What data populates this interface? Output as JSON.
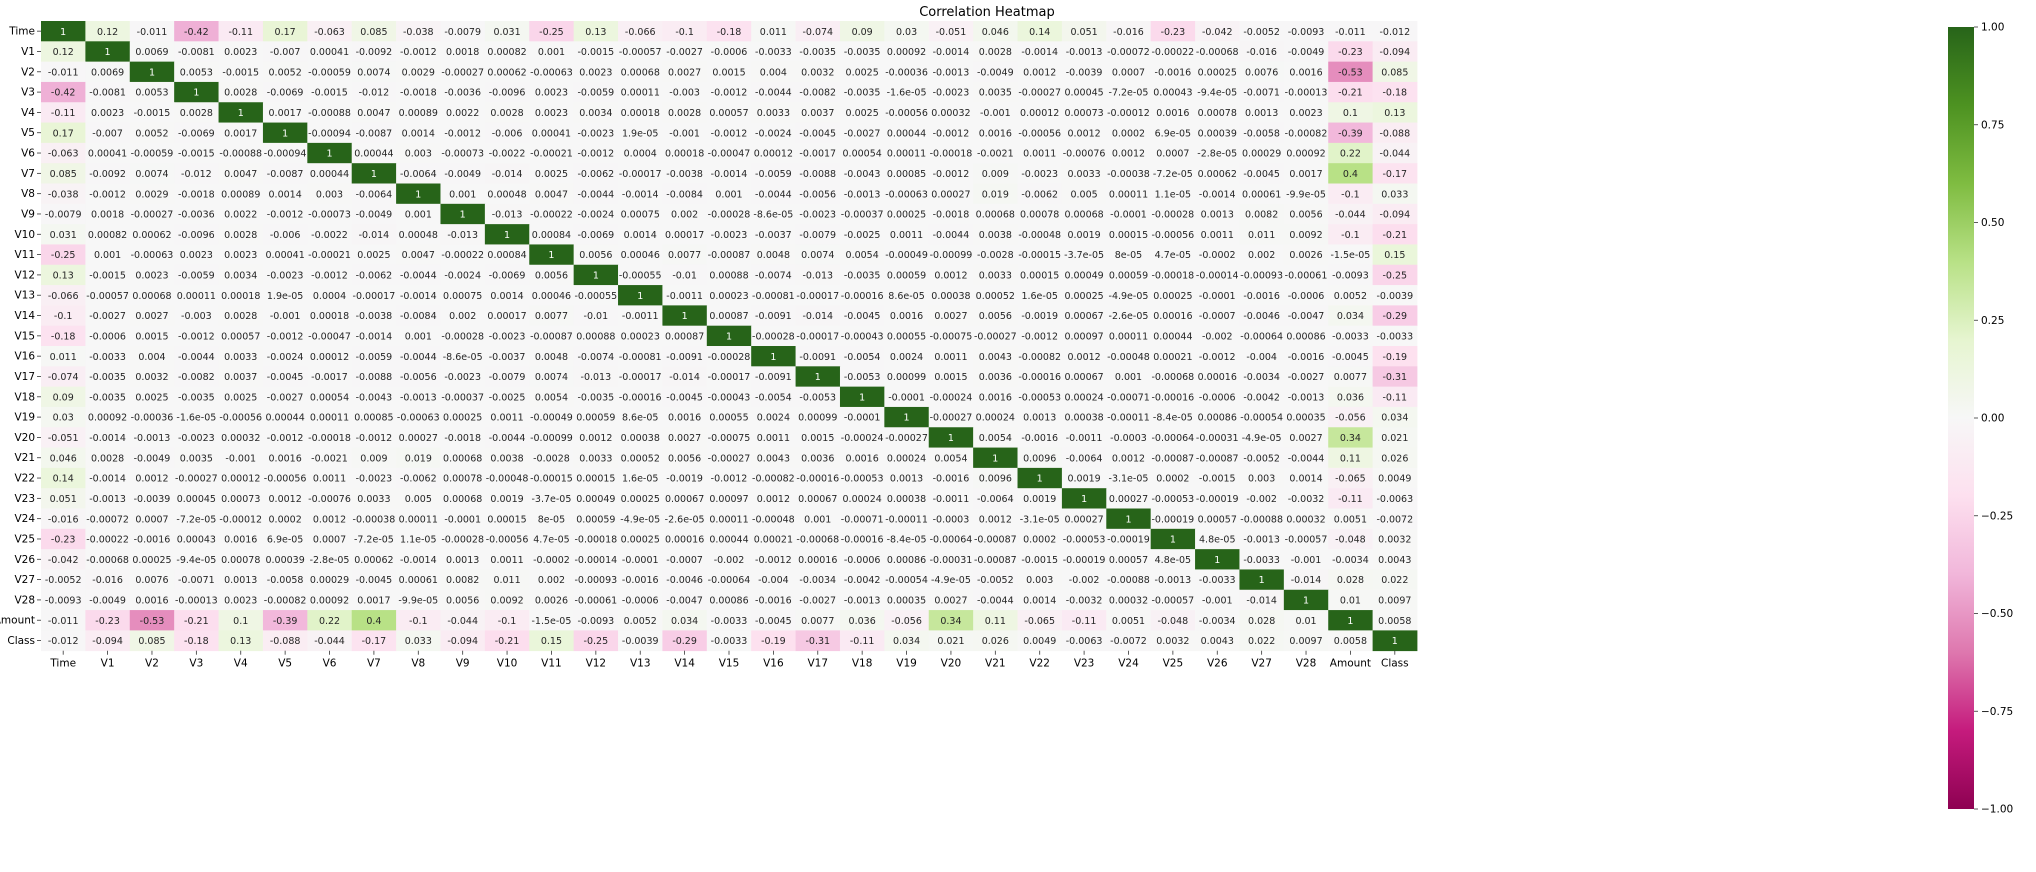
{
  "chart_data": {
    "type": "heatmap",
    "title": "Correlation Heatmap",
    "colormap": "PiYG",
    "vmin": -1,
    "vmax": 1,
    "labels": [
      "Time",
      "V1",
      "V2",
      "V3",
      "V4",
      "V5",
      "V6",
      "V7",
      "V8",
      "V9",
      "V10",
      "V11",
      "V12",
      "V13",
      "V14",
      "V15",
      "V16",
      "V17",
      "V18",
      "V19",
      "V20",
      "V21",
      "V22",
      "V23",
      "V24",
      "V25",
      "V26",
      "V27",
      "V28",
      "Amount",
      "Class"
    ],
    "colorbar_ticks": [
      "1.00",
      "0.75",
      "0.50",
      "0.25",
      "0.00",
      "−0.25",
      "−0.50",
      "−0.75",
      "−1.00"
    ],
    "colorbar_tick_values": [
      1.0,
      0.75,
      0.5,
      0.25,
      0.0,
      -0.25,
      -0.5,
      -0.75,
      -1.0
    ],
    "matrix": [
      [
        "1",
        "0.12",
        "-0.011",
        "-0.42",
        "-0.11",
        "0.17",
        "-0.063",
        "0.085",
        "-0.038",
        "-0.0079",
        "0.031",
        "-0.25",
        "0.13",
        "-0.066",
        "-0.1",
        "-0.18",
        "0.011",
        "-0.074",
        "0.09",
        "0.03",
        "-0.051",
        "0.046",
        "0.14",
        "0.051",
        "-0.016",
        "-0.23",
        "-0.042",
        "-0.0052",
        "-0.0093",
        "-0.011",
        "-0.012"
      ],
      [
        "0.12",
        "1",
        "0.0069",
        "-0.0081",
        "0.0023",
        "-0.007",
        "0.00041",
        "-0.0092",
        "-0.0012",
        "0.0018",
        "0.00082",
        "0.001",
        "-0.0015",
        "-0.00057",
        "-0.0027",
        "-0.0006",
        "-0.0033",
        "-0.0035",
        "-0.0035",
        "0.00092",
        "-0.0014",
        "0.0028",
        "-0.0014",
        "-0.0013",
        "-0.00072",
        "-0.00022",
        "-0.00068",
        "-0.016",
        "-0.0049",
        "-0.23",
        "-0.094"
      ],
      [
        "-0.011",
        "0.0069",
        "1",
        "0.0053",
        "-0.0015",
        "0.0052",
        "-0.00059",
        "0.0074",
        "0.0029",
        "-0.00027",
        "0.00062",
        "-0.00063",
        "0.0023",
        "0.00068",
        "0.0027",
        "0.0015",
        "0.004",
        "0.0032",
        "0.0025",
        "-0.00036",
        "-0.0013",
        "-0.0049",
        "0.0012",
        "-0.0039",
        "0.0007",
        "-0.0016",
        "0.00025",
        "0.0076",
        "0.0016",
        "-0.53",
        "0.085"
      ],
      [
        "-0.42",
        "-0.0081",
        "0.0053",
        "1",
        "0.0028",
        "-0.0069",
        "-0.0015",
        "-0.012",
        "-0.0018",
        "-0.0036",
        "-0.0096",
        "0.0023",
        "-0.0059",
        "0.00011",
        "-0.003",
        "-0.0012",
        "-0.0044",
        "-0.0082",
        "-0.0035",
        "-1.6e-05",
        "-0.0023",
        "0.0035",
        "-0.00027",
        "0.00045",
        "-7.2e-05",
        "0.00043",
        "-9.4e-05",
        "-0.0071",
        "-0.00013",
        "-0.21",
        "-0.18"
      ],
      [
        "-0.11",
        "0.0023",
        "-0.0015",
        "0.0028",
        "1",
        "0.0017",
        "-0.00088",
        "0.0047",
        "0.00089",
        "0.0022",
        "0.0028",
        "0.0023",
        "0.0034",
        "0.00018",
        "0.0028",
        "0.00057",
        "0.0033",
        "0.0037",
        "0.0025",
        "-0.00056",
        "0.00032",
        "-0.001",
        "0.00012",
        "0.00073",
        "-0.00012",
        "0.0016",
        "0.00078",
        "0.0013",
        "0.0023",
        "0.1",
        "0.13"
      ],
      [
        "0.17",
        "-0.007",
        "0.0052",
        "-0.0069",
        "0.0017",
        "1",
        "-0.00094",
        "-0.0087",
        "0.0014",
        "-0.0012",
        "-0.006",
        "0.00041",
        "-0.0023",
        "1.9e-05",
        "-0.001",
        "-0.0012",
        "-0.0024",
        "-0.0045",
        "-0.0027",
        "0.00044",
        "-0.0012",
        "0.0016",
        "-0.00056",
        "0.0012",
        "0.0002",
        "6.9e-05",
        "0.00039",
        "-0.0058",
        "-0.00082",
        "-0.39",
        "-0.088"
      ],
      [
        "-0.063",
        "0.00041",
        "-0.00059",
        "-0.0015",
        "-0.00088",
        "-0.00094",
        "1",
        "0.00044",
        "0.003",
        "-0.00073",
        "-0.0022",
        "-0.00021",
        "-0.0012",
        "0.0004",
        "0.00018",
        "-0.00047",
        "0.00012",
        "-0.0017",
        "0.00054",
        "0.00011",
        "-0.00018",
        "-0.0021",
        "0.0011",
        "-0.00076",
        "0.0012",
        "0.0007",
        "-2.8e-05",
        "0.00029",
        "0.00092",
        "0.22",
        "-0.044"
      ],
      [
        "0.085",
        "-0.0092",
        "0.0074",
        "-0.012",
        "0.0047",
        "-0.0087",
        "0.00044",
        "1",
        "-0.0064",
        "-0.0049",
        "-0.014",
        "0.0025",
        "-0.0062",
        "-0.00017",
        "-0.0038",
        "-0.0014",
        "-0.0059",
        "-0.0088",
        "-0.0043",
        "0.00085",
        "-0.0012",
        "0.009",
        "-0.0023",
        "0.0033",
        "-0.00038",
        "-7.2e-05",
        "0.00062",
        "-0.0045",
        "0.0017",
        "0.4",
        "-0.17"
      ],
      [
        "-0.038",
        "-0.0012",
        "0.0029",
        "-0.0018",
        "0.00089",
        "0.0014",
        "0.003",
        "-0.0064",
        "1",
        "0.001",
        "0.00048",
        "0.0047",
        "-0.0044",
        "-0.0014",
        "-0.0084",
        "0.001",
        "-0.0044",
        "-0.0056",
        "-0.0013",
        "-0.00063",
        "0.00027",
        "0.019",
        "-0.0062",
        "0.005",
        "0.00011",
        "1.1e-05",
        "-0.0014",
        "0.00061",
        "-9.9e-05",
        "-0.1",
        "0.033"
      ],
      [
        "-0.0079",
        "0.0018",
        "-0.00027",
        "-0.0036",
        "0.0022",
        "-0.0012",
        "-0.00073",
        "-0.0049",
        "0.001",
        "1",
        "-0.013",
        "-0.00022",
        "-0.0024",
        "0.00075",
        "0.002",
        "-0.00028",
        "-8.6e-05",
        "-0.0023",
        "-0.00037",
        "0.00025",
        "-0.0018",
        "0.00068",
        "0.00078",
        "0.00068",
        "-0.0001",
        "-0.00028",
        "0.0013",
        "0.0082",
        "0.0056",
        "-0.044",
        "-0.094"
      ],
      [
        "0.031",
        "0.00082",
        "0.00062",
        "-0.0096",
        "0.0028",
        "-0.006",
        "-0.0022",
        "-0.014",
        "0.00048",
        "-0.013",
        "1",
        "0.00084",
        "-0.0069",
        "0.0014",
        "0.00017",
        "-0.0023",
        "-0.0037",
        "-0.0079",
        "-0.0025",
        "0.0011",
        "-0.0044",
        "0.0038",
        "-0.00048",
        "0.0019",
        "0.00015",
        "-0.00056",
        "0.0011",
        "0.011",
        "0.0092",
        "-0.1",
        "-0.21"
      ],
      [
        "-0.25",
        "0.001",
        "-0.00063",
        "0.0023",
        "0.0023",
        "0.00041",
        "-0.00021",
        "0.0025",
        "0.0047",
        "-0.00022",
        "0.00084",
        "1",
        "0.0056",
        "0.00046",
        "0.0077",
        "-0.00087",
        "0.0048",
        "0.0074",
        "0.0054",
        "-0.00049",
        "-0.00099",
        "-0.0028",
        "-0.00015",
        "-3.7e-05",
        "8e-05",
        "4.7e-05",
        "-0.0002",
        "0.002",
        "0.0026",
        "-1.5e-05",
        "0.15"
      ],
      [
        "0.13",
        "-0.0015",
        "0.0023",
        "-0.0059",
        "0.0034",
        "-0.0023",
        "-0.0012",
        "-0.0062",
        "-0.0044",
        "-0.0024",
        "-0.0069",
        "0.0056",
        "1",
        "-0.00055",
        "-0.01",
        "0.00088",
        "-0.0074",
        "-0.013",
        "-0.0035",
        "0.00059",
        "0.0012",
        "0.0033",
        "0.00015",
        "0.00049",
        "0.00059",
        "-0.00018",
        "-0.00014",
        "-0.00093",
        "-0.00061",
        "-0.0093",
        "-0.25"
      ],
      [
        "-0.066",
        "-0.00057",
        "0.00068",
        "0.00011",
        "0.00018",
        "1.9e-05",
        "0.0004",
        "-0.00017",
        "-0.0014",
        "0.00075",
        "0.0014",
        "0.00046",
        "-0.00055",
        "1",
        "-0.0011",
        "0.00023",
        "-0.00081",
        "-0.00017",
        "-0.00016",
        "8.6e-05",
        "0.00038",
        "0.00052",
        "1.6e-05",
        "0.00025",
        "-4.9e-05",
        "0.00025",
        "-0.0001",
        "-0.0016",
        "-0.0006",
        "0.0052",
        "-0.0039"
      ],
      [
        "-0.1",
        "-0.0027",
        "0.0027",
        "-0.003",
        "0.0028",
        "-0.001",
        "0.00018",
        "-0.0038",
        "-0.0084",
        "0.002",
        "0.00017",
        "0.0077",
        "-0.01",
        "-0.0011",
        "1",
        "0.00087",
        "-0.0091",
        "-0.014",
        "-0.0045",
        "0.0016",
        "0.0027",
        "0.0056",
        "-0.0019",
        "0.00067",
        "-2.6e-05",
        "0.00016",
        "-0.0007",
        "-0.0046",
        "-0.0047",
        "0.034",
        "-0.29"
      ],
      [
        "-0.18",
        "-0.0006",
        "0.0015",
        "-0.0012",
        "0.00057",
        "-0.0012",
        "-0.00047",
        "-0.0014",
        "0.001",
        "-0.00028",
        "-0.0023",
        "-0.00087",
        "0.00088",
        "0.00023",
        "0.00087",
        "1",
        "-0.00028",
        "-0.00017",
        "-0.00043",
        "0.00055",
        "-0.00075",
        "-0.00027",
        "-0.0012",
        "0.00097",
        "0.00011",
        "0.00044",
        "-0.002",
        "-0.00064",
        "0.00086",
        "-0.0033",
        "-0.0033"
      ],
      [
        "0.011",
        "-0.0033",
        "0.004",
        "-0.0044",
        "0.0033",
        "-0.0024",
        "0.00012",
        "-0.0059",
        "-0.0044",
        "-8.6e-05",
        "-0.0037",
        "0.0048",
        "-0.0074",
        "-0.00081",
        "-0.0091",
        "-0.00028",
        "1",
        "-0.0091",
        "-0.0054",
        "0.0024",
        "0.0011",
        "0.0043",
        "-0.00082",
        "0.0012",
        "-0.00048",
        "0.00021",
        "-0.0012",
        "-0.004",
        "-0.0016",
        "-0.0045",
        "-0.19"
      ],
      [
        "-0.074",
        "-0.0035",
        "0.0032",
        "-0.0082",
        "0.0037",
        "-0.0045",
        "-0.0017",
        "-0.0088",
        "-0.0056",
        "-0.0023",
        "-0.0079",
        "0.0074",
        "-0.013",
        "-0.00017",
        "-0.014",
        "-0.00017",
        "-0.0091",
        "1",
        "-0.0053",
        "0.00099",
        "0.0015",
        "0.0036",
        "-0.00016",
        "0.00067",
        "0.001",
        "-0.00068",
        "0.00016",
        "-0.0034",
        "-0.0027",
        "0.0077",
        "-0.31"
      ],
      [
        "0.09",
        "-0.0035",
        "0.0025",
        "-0.0035",
        "0.0025",
        "-0.0027",
        "0.00054",
        "-0.0043",
        "-0.0013",
        "-0.00037",
        "-0.0025",
        "0.0054",
        "-0.0035",
        "-0.00016",
        "-0.0045",
        "-0.00043",
        "-0.0054",
        "-0.0053",
        "1",
        "-0.0001",
        "-0.00024",
        "0.0016",
        "-0.00053",
        "0.00024",
        "-0.00071",
        "-0.00016",
        "-0.0006",
        "-0.0042",
        "-0.0013",
        "0.036",
        "-0.11"
      ],
      [
        "0.03",
        "0.00092",
        "-0.00036",
        "-1.6e-05",
        "-0.00056",
        "0.00044",
        "0.00011",
        "0.00085",
        "-0.00063",
        "0.00025",
        "0.0011",
        "-0.00049",
        "0.00059",
        "8.6e-05",
        "0.0016",
        "0.00055",
        "0.0024",
        "0.00099",
        "-0.0001",
        "1",
        "-0.00027",
        "0.00024",
        "0.0013",
        "0.00038",
        "-0.00011",
        "-8.4e-05",
        "0.00086",
        "-0.00054",
        "0.00035",
        "-0.056",
        "0.034"
      ],
      [
        "-0.051",
        "-0.0014",
        "-0.0013",
        "-0.0023",
        "0.00032",
        "-0.0012",
        "-0.00018",
        "-0.0012",
        "0.00027",
        "-0.0018",
        "-0.0044",
        "-0.00099",
        "0.0012",
        "0.00038",
        "0.0027",
        "-0.00075",
        "0.0011",
        "0.0015",
        "-0.00024",
        "-0.00027",
        "1",
        "0.0054",
        "-0.0016",
        "-0.0011",
        "-0.0003",
        "-0.00064",
        "-0.00031",
        "-4.9e-05",
        "0.0027",
        "0.34",
        "0.021"
      ],
      [
        "0.046",
        "0.0028",
        "-0.0049",
        "0.0035",
        "-0.001",
        "0.0016",
        "-0.0021",
        "0.009",
        "0.019",
        "0.00068",
        "0.0038",
        "-0.0028",
        "0.0033",
        "0.00052",
        "0.0056",
        "-0.00027",
        "0.0043",
        "0.0036",
        "0.0016",
        "0.00024",
        "0.0054",
        "1",
        "0.0096",
        "-0.0064",
        "0.0012",
        "-0.00087",
        "-0.00087",
        "-0.0052",
        "-0.0044",
        "0.11",
        "0.026"
      ],
      [
        "0.14",
        "-0.0014",
        "0.0012",
        "-0.00027",
        "0.00012",
        "-0.00056",
        "0.0011",
        "-0.0023",
        "-0.0062",
        "0.00078",
        "-0.00048",
        "-0.00015",
        "0.00015",
        "1.6e-05",
        "-0.0019",
        "-0.0012",
        "-0.00082",
        "-0.00016",
        "-0.00053",
        "0.0013",
        "-0.0016",
        "0.0096",
        "1",
        "0.0019",
        "-3.1e-05",
        "0.0002",
        "-0.0015",
        "0.003",
        "0.0014",
        "-0.065",
        "0.0049"
      ],
      [
        "0.051",
        "-0.0013",
        "-0.0039",
        "0.00045",
        "0.00073",
        "0.0012",
        "-0.00076",
        "0.0033",
        "0.005",
        "0.00068",
        "0.0019",
        "-3.7e-05",
        "0.00049",
        "0.00025",
        "0.00067",
        "0.00097",
        "0.0012",
        "0.00067",
        "0.00024",
        "0.00038",
        "-0.0011",
        "-0.0064",
        "0.0019",
        "1",
        "0.00027",
        "-0.00053",
        "-0.00019",
        "-0.002",
        "-0.0032",
        "-0.11",
        "-0.0063"
      ],
      [
        "-0.016",
        "-0.00072",
        "0.0007",
        "-7.2e-05",
        "-0.00012",
        "0.0002",
        "0.0012",
        "-0.00038",
        "0.00011",
        "-0.0001",
        "0.00015",
        "8e-05",
        "0.00059",
        "-4.9e-05",
        "-2.6e-05",
        "0.00011",
        "-0.00048",
        "0.001",
        "-0.00071",
        "-0.00011",
        "-0.0003",
        "0.0012",
        "-3.1e-05",
        "0.00027",
        "1",
        "-0.00019",
        "0.00057",
        "-0.00088",
        "0.00032",
        "0.0051",
        "-0.0072"
      ],
      [
        "-0.23",
        "-0.00022",
        "-0.0016",
        "0.00043",
        "0.0016",
        "6.9e-05",
        "0.0007",
        "-7.2e-05",
        "1.1e-05",
        "-0.00028",
        "-0.00056",
        "4.7e-05",
        "-0.00018",
        "0.00025",
        "0.00016",
        "0.00044",
        "0.00021",
        "-0.00068",
        "-0.00016",
        "-8.4e-05",
        "-0.00064",
        "-0.00087",
        "0.0002",
        "-0.00053",
        "-0.00019",
        "1",
        "4.8e-05",
        "-0.0013",
        "-0.00057",
        "-0.048",
        "0.0032"
      ],
      [
        "-0.042",
        "-0.00068",
        "0.00025",
        "-9.4e-05",
        "0.00078",
        "0.00039",
        "-2.8e-05",
        "0.00062",
        "-0.0014",
        "0.0013",
        "0.0011",
        "-0.0002",
        "-0.00014",
        "-0.0001",
        "-0.0007",
        "-0.002",
        "-0.0012",
        "0.00016",
        "-0.0006",
        "0.00086",
        "-0.00031",
        "-0.00087",
        "-0.0015",
        "-0.00019",
        "0.00057",
        "4.8e-05",
        "1",
        "-0.0033",
        "-0.001",
        "-0.0034",
        "0.0043"
      ],
      [
        "-0.0052",
        "-0.016",
        "0.0076",
        "-0.0071",
        "0.0013",
        "-0.0058",
        "0.00029",
        "-0.0045",
        "0.00061",
        "0.0082",
        "0.011",
        "0.002",
        "-0.00093",
        "-0.0016",
        "-0.0046",
        "-0.00064",
        "-0.004",
        "-0.0034",
        "-0.0042",
        "-0.00054",
        "-4.9e-05",
        "-0.0052",
        "0.003",
        "-0.002",
        "-0.00088",
        "-0.0013",
        "-0.0033",
        "1",
        "-0.014",
        "0.028",
        "0.022"
      ],
      [
        "-0.0093",
        "-0.0049",
        "0.0016",
        "-0.00013",
        "0.0023",
        "-0.00082",
        "0.00092",
        "0.0017",
        "-9.9e-05",
        "0.0056",
        "0.0092",
        "0.0026",
        "-0.00061",
        "-0.0006",
        "-0.0047",
        "0.00086",
        "-0.0016",
        "-0.0027",
        "-0.0013",
        "0.00035",
        "0.0027",
        "-0.0044",
        "0.0014",
        "-0.0032",
        "0.00032",
        "-0.00057",
        "-0.001",
        "-0.014",
        "1",
        "0.01",
        "0.0097"
      ],
      [
        "-0.011",
        "-0.23",
        "-0.53",
        "-0.21",
        "0.1",
        "-0.39",
        "0.22",
        "0.4",
        "-0.1",
        "-0.044",
        "-0.1",
        "-1.5e-05",
        "-0.0093",
        "0.0052",
        "0.034",
        "-0.0033",
        "-0.0045",
        "0.0077",
        "0.036",
        "-0.056",
        "0.34",
        "0.11",
        "-0.065",
        "-0.11",
        "0.0051",
        "-0.048",
        "-0.0034",
        "0.028",
        "0.01",
        "1",
        "0.0058"
      ],
      [
        "-0.012",
        "-0.094",
        "0.085",
        "-0.18",
        "0.13",
        "-0.088",
        "-0.044",
        "-0.17",
        "0.033",
        "-0.094",
        "-0.21",
        "0.15",
        "-0.25",
        "-0.0039",
        "-0.29",
        "-0.0033",
        "-0.19",
        "-0.31",
        "-0.11",
        "0.034",
        "0.021",
        "0.026",
        "0.0049",
        "-0.0063",
        "-0.0072",
        "0.0032",
        "0.0043",
        "0.022",
        "0.0097",
        "0.0058",
        "1"
      ]
    ]
  }
}
